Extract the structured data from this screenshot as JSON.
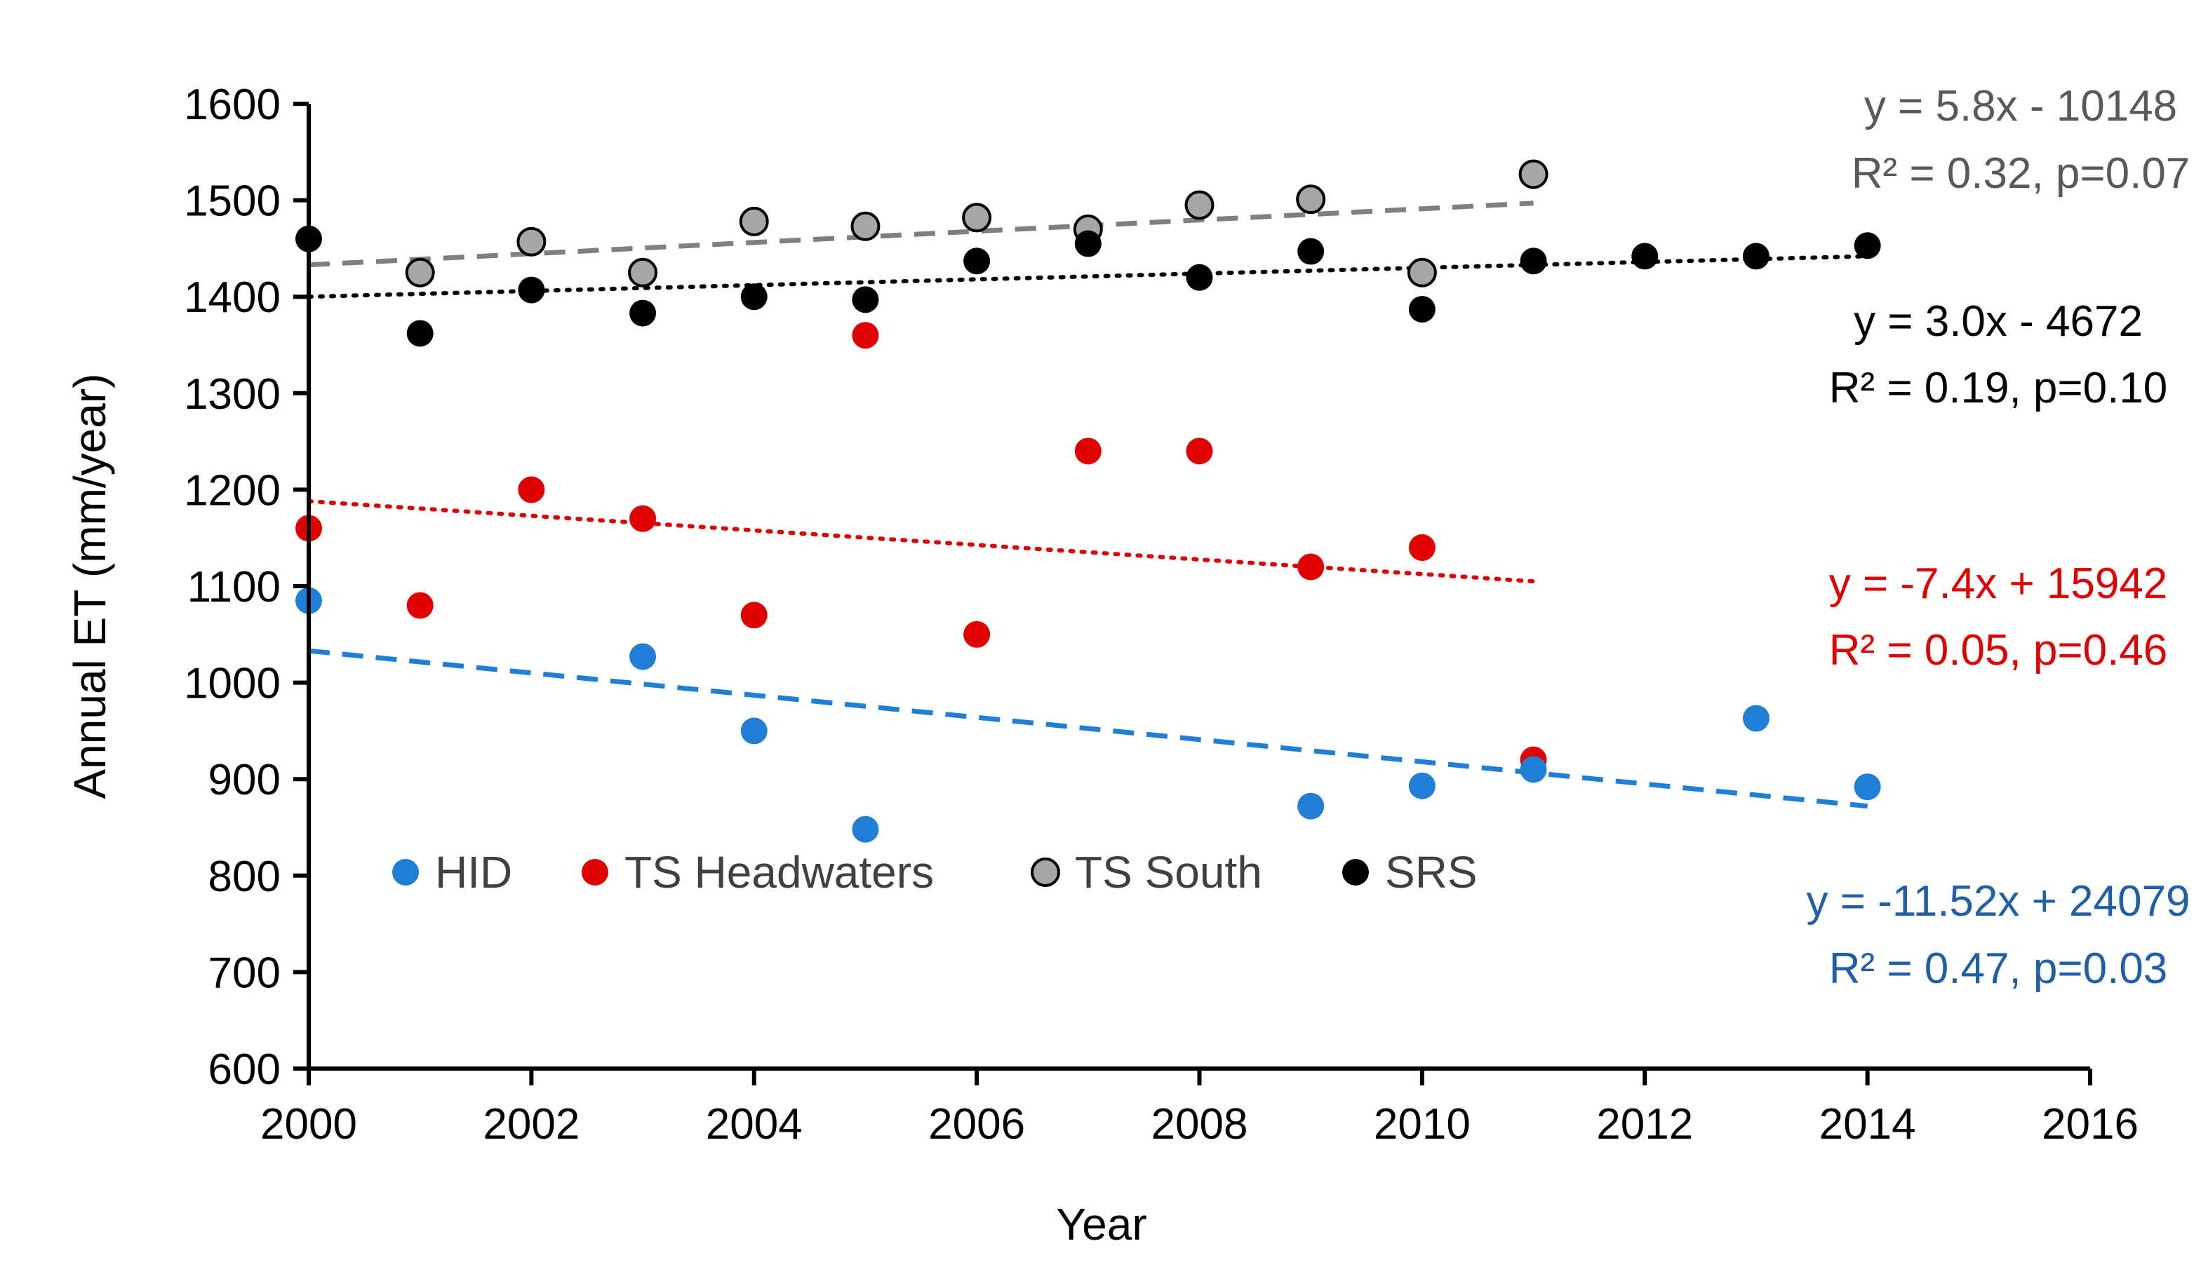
{
  "chart_data": {
    "type": "scatter",
    "title": "",
    "xlabel": "Year",
    "ylabel": "Annual ET (mm/year)",
    "xlim": [
      2000,
      2016
    ],
    "ylim": [
      600,
      1600
    ],
    "x_ticks": [
      2000,
      2002,
      2004,
      2006,
      2008,
      2010,
      2012,
      2014,
      2016
    ],
    "y_ticks": [
      600,
      700,
      800,
      900,
      1000,
      1100,
      1200,
      1300,
      1400,
      1500,
      1600
    ],
    "x_tick_labels": [
      "2000",
      "2002",
      "2004",
      "2006",
      "2008",
      "2010",
      "2012",
      "2014",
      "2016"
    ],
    "y_tick_labels": [
      "600",
      "700",
      "800",
      "900",
      "1000",
      "1100",
      "1200",
      "1300",
      "1400",
      "1500",
      "1600"
    ],
    "grid": false,
    "legend_position": "bottom-left",
    "series": [
      {
        "name": "HID",
        "color": "#1f7fd6",
        "edge": "#1f7fd6",
        "points": [
          [
            2000,
            1085
          ],
          [
            2003,
            1027
          ],
          [
            2004,
            950
          ],
          [
            2005,
            848
          ],
          [
            2009,
            872
          ],
          [
            2010,
            893
          ],
          [
            2011,
            910
          ],
          [
            2013,
            963
          ],
          [
            2014,
            892
          ]
        ],
        "trend": {
          "x": [
            2000,
            2014
          ],
          "y": [
            1033,
            872
          ],
          "style": "dashed",
          "color": "#1f7fd6"
        },
        "equation": "y = -11.52x + 24079",
        "r2": "R² = 0.47, p=0.03",
        "annot_color": "#1f5fa8"
      },
      {
        "name": "TS Headwaters",
        "color": "#e00000",
        "edge": "#e00000",
        "points": [
          [
            2000,
            1160
          ],
          [
            2001,
            1080
          ],
          [
            2002,
            1200
          ],
          [
            2003,
            1170
          ],
          [
            2004,
            1070
          ],
          [
            2005,
            1360
          ],
          [
            2006,
            1050
          ],
          [
            2007,
            1240
          ],
          [
            2008,
            1240
          ],
          [
            2009,
            1120
          ],
          [
            2010,
            1140
          ],
          [
            2011,
            920
          ]
        ],
        "trend": {
          "x": [
            2000,
            2011
          ],
          "y": [
            1188,
            1105
          ],
          "style": "dotted",
          "color": "#e00000"
        },
        "equation": "y = -7.4x + 15942",
        "r2": "R² = 0.05, p=0.46",
        "annot_color": "#e00000"
      },
      {
        "name": "TS South",
        "color": "#a6a6a6",
        "edge": "#000000",
        "points": [
          [
            2001,
            1425
          ],
          [
            2002,
            1457
          ],
          [
            2003,
            1425
          ],
          [
            2004,
            1478
          ],
          [
            2005,
            1473
          ],
          [
            2006,
            1482
          ],
          [
            2007,
            1470
          ],
          [
            2008,
            1495
          ],
          [
            2009,
            1501
          ],
          [
            2010,
            1425
          ],
          [
            2011,
            1527
          ]
        ],
        "trend": {
          "x": [
            2000,
            2011
          ],
          "y": [
            1433,
            1497
          ],
          "style": "dashed",
          "color": "#7f7f7f"
        },
        "equation": "y = 5.8x - 10148",
        "r2": "R² = 0.32, p=0.07",
        "annot_color": "#595959"
      },
      {
        "name": "SRS",
        "color": "#000000",
        "edge": "#000000",
        "points": [
          [
            2000,
            1460
          ],
          [
            2001,
            1362
          ],
          [
            2002,
            1407
          ],
          [
            2003,
            1383
          ],
          [
            2004,
            1400
          ],
          [
            2005,
            1397
          ],
          [
            2006,
            1437
          ],
          [
            2007,
            1455
          ],
          [
            2008,
            1420
          ],
          [
            2009,
            1447
          ],
          [
            2010,
            1387
          ],
          [
            2011,
            1437
          ],
          [
            2012,
            1442
          ],
          [
            2013,
            1442
          ],
          [
            2014,
            1453
          ]
        ],
        "trend": {
          "x": [
            2000,
            2014
          ],
          "y": [
            1400,
            1442
          ],
          "style": "dotted",
          "color": "#000000"
        },
        "equation": "y = 3.0x - 4672",
        "r2": "R² = 0.19, p=0.10",
        "annot_color": "#000000"
      }
    ]
  }
}
